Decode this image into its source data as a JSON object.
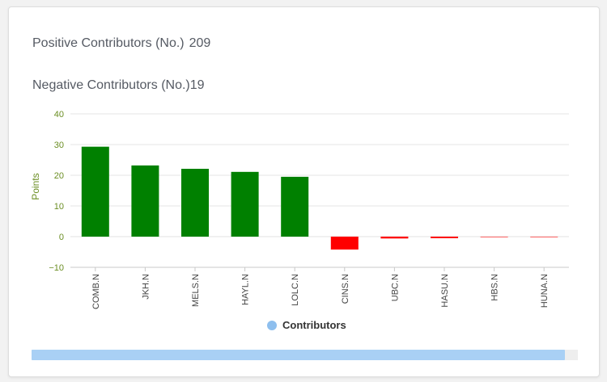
{
  "summary": {
    "positive_label": "Positive Contributors (No.)",
    "positive_value": "209",
    "negative_label": "Negative Contributors (No.)",
    "negative_value": "19"
  },
  "legend": {
    "label": "Contributors",
    "color": "#8ebfee"
  },
  "colors": {
    "positive": "#008000",
    "negative": "#ff0000",
    "axis_text": "#6b8e23"
  },
  "chart_data": {
    "type": "bar",
    "title": "",
    "xlabel": "",
    "ylabel": "Points",
    "ylim": [
      -10,
      40
    ],
    "yticks": [
      -10,
      0,
      10,
      20,
      30,
      40
    ],
    "categories": [
      "COMB.N",
      "JKH.N",
      "MELS.N",
      "HAYL.N",
      "LOLC.N",
      "CINS.N",
      "UBC.N",
      "HASU.N",
      "HBS.N",
      "HUNA.N"
    ],
    "series": [
      {
        "name": "Contributors",
        "values": [
          29.3,
          23.2,
          22.1,
          21.1,
          19.5,
          -4.2,
          -0.6,
          -0.5,
          -0.1,
          -0.1
        ]
      }
    ],
    "grid": true,
    "legend_position": "bottom"
  },
  "scrollbar": {
    "position": 0.0,
    "visible_fraction": 0.976
  }
}
